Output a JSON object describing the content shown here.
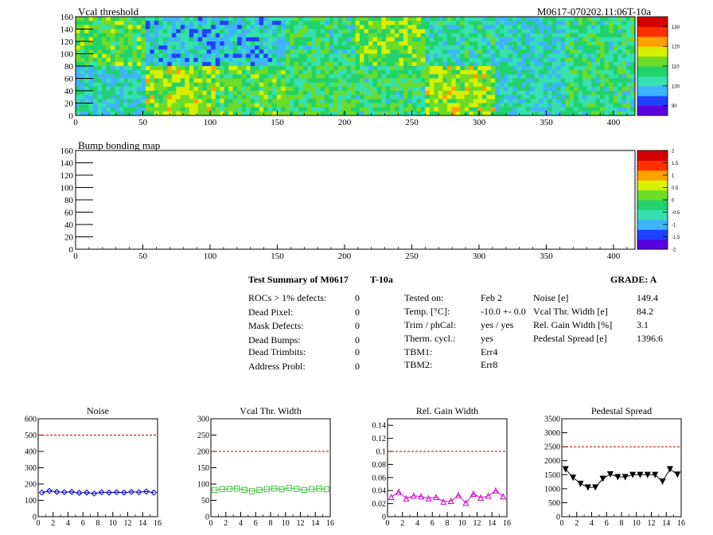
{
  "chart_data": [
    {
      "type": "heatmap",
      "title": "Vcal threshold",
      "run_label": "M0617-070202.11:06T-10a",
      "xlim": [
        0,
        416
      ],
      "ylim": [
        0,
        160
      ],
      "x_ticks": [
        0,
        50,
        100,
        150,
        200,
        250,
        300,
        350,
        400
      ],
      "y_ticks": [
        0,
        20,
        40,
        60,
        80,
        100,
        120,
        140,
        160
      ],
      "z_range": [
        85,
        135
      ],
      "z_ticks": [
        90,
        100,
        110,
        120,
        130
      ],
      "palette": [
        "#5a00e0",
        "#2040ff",
        "#3fb4ff",
        "#36e0b0",
        "#22d26a",
        "#6ddc28",
        "#d8f000",
        "#ffa000",
        "#ff3000",
        "#d40000"
      ],
      "roc_grid": {
        "cols": 8,
        "rows": 2
      },
      "roc_mean_thresholds": {
        "top": [
          110,
          100,
          100,
          106,
          112,
          104,
          102,
          106
        ],
        "bottom": [
          102,
          114,
          110,
          108,
          106,
          114,
          102,
          106
        ]
      }
    },
    {
      "type": "heatmap",
      "title": "Bump bonding map",
      "xlim": [
        0,
        416
      ],
      "ylim": [
        0,
        160
      ],
      "x_ticks": [
        0,
        50,
        100,
        150,
        200,
        250,
        300,
        350,
        400
      ],
      "y_ticks": [
        0,
        20,
        40,
        60,
        80,
        100,
        120,
        140,
        160
      ],
      "z_range": [
        -2,
        2
      ],
      "z_ticks": [
        "2",
        "1.5",
        "1",
        "0.5",
        "0",
        "-0.5",
        "-1",
        "-1.5",
        "-2"
      ],
      "palette": [
        "#5a00e0",
        "#2040ff",
        "#3fb4ff",
        "#36e0b0",
        "#22d26a",
        "#6ddc28",
        "#d8f000",
        "#ffa000",
        "#ff3000",
        "#d40000"
      ],
      "entries": 0
    },
    {
      "type": "line",
      "title": "Noise",
      "x": [
        0,
        1,
        2,
        3,
        4,
        5,
        6,
        7,
        8,
        9,
        10,
        11,
        12,
        13,
        14,
        15
      ],
      "values": [
        148,
        158,
        152,
        150,
        152,
        146,
        148,
        142,
        150,
        148,
        150,
        148,
        152,
        150,
        154,
        148
      ],
      "xlim": [
        0,
        16
      ],
      "ylim": [
        0,
        600
      ],
      "x_ticks": [
        0,
        2,
        4,
        6,
        8,
        10,
        12,
        14,
        16
      ],
      "y_ticks": [
        0,
        100,
        200,
        300,
        400,
        500,
        600
      ],
      "cut_line": 500,
      "color": "#0000c8",
      "marker": "diamond"
    },
    {
      "type": "line",
      "title": "Vcal Thr. Width",
      "x": [
        0,
        1,
        2,
        3,
        4,
        5,
        6,
        7,
        8,
        9,
        10,
        11,
        12,
        13,
        14,
        15
      ],
      "values": [
        82,
        84,
        85,
        86,
        82,
        78,
        82,
        84,
        86,
        84,
        88,
        85,
        82,
        84,
        86,
        84
      ],
      "xlim": [
        0,
        16
      ],
      "ylim": [
        0,
        300
      ],
      "x_ticks": [
        0,
        2,
        4,
        6,
        8,
        10,
        12,
        14,
        16
      ],
      "y_ticks": [
        0,
        50,
        100,
        150,
        200,
        250,
        300
      ],
      "cut_line": 200,
      "color": "#44c244",
      "marker": "square"
    },
    {
      "type": "line",
      "title": "Rel. Gain Width",
      "x": [
        0,
        1,
        2,
        3,
        4,
        5,
        6,
        7,
        8,
        9,
        10,
        11,
        12,
        13,
        14,
        15
      ],
      "values": [
        0.03,
        0.038,
        0.028,
        0.032,
        0.031,
        0.028,
        0.03,
        0.023,
        0.024,
        0.033,
        0.021,
        0.035,
        0.029,
        0.032,
        0.04,
        0.031
      ],
      "xlim": [
        0,
        16
      ],
      "ylim": [
        0,
        0.15
      ],
      "x_ticks": [
        0,
        2,
        4,
        6,
        8,
        10,
        12,
        14,
        16
      ],
      "y_ticks": [
        "0",
        "0.02",
        "0.04",
        "0.06",
        "0.08",
        "0.1",
        "0.12",
        "0.14"
      ],
      "cut_line": 0.1,
      "color": "#d000d0",
      "marker": "triangle"
    },
    {
      "type": "line",
      "title": "Pedestal Spread",
      "x": [
        0,
        1,
        2,
        3,
        4,
        5,
        6,
        7,
        8,
        9,
        10,
        11,
        12,
        13,
        14,
        15
      ],
      "values": [
        1700,
        1400,
        1180,
        1050,
        1050,
        1360,
        1520,
        1420,
        1420,
        1500,
        1500,
        1500,
        1500,
        1260,
        1700,
        1510
      ],
      "xlim": [
        0,
        16
      ],
      "ylim": [
        0,
        3500
      ],
      "x_ticks": [
        0,
        2,
        4,
        6,
        8,
        10,
        12,
        14,
        16
      ],
      "y_ticks": [
        0,
        500,
        1000,
        1500,
        2000,
        2500,
        3000,
        3500
      ],
      "cut_line": 2500,
      "color": "#000000",
      "marker": "triangle-down"
    }
  ],
  "summary": {
    "title": "Test Summary of M0617",
    "temp_label": "T-10a",
    "grade": "GRADE:  A",
    "defects": [
      {
        "label": "ROCs > 1% defects:",
        "value": "0"
      },
      {
        "label": "Dead Pixel:",
        "value": "0"
      },
      {
        "label": "Mask Defects:",
        "value": "0"
      },
      {
        "label": "Dead Bumps:",
        "value": "0"
      },
      {
        "label": "Dead Trimbits:",
        "value": "0"
      },
      {
        "label": "Address Probl:",
        "value": "0"
      }
    ],
    "conditions": [
      {
        "label": "Tested on:",
        "value": "Feb 2"
      },
      {
        "label": "Temp. [°C]:",
        "value": "-10.0 +- 0.0"
      },
      {
        "label": "Trim / phCal:",
        "value": "yes / yes"
      },
      {
        "label": "Therm. cycl.:",
        "value": "yes"
      },
      {
        "label": "TBM1:",
        "value": "Err4"
      },
      {
        "label": "TBM2:",
        "value": "Err8"
      }
    ],
    "measurements": [
      {
        "label": "Noise [e]",
        "value": "149.4"
      },
      {
        "label": "Vcal Thr. Width [e]",
        "value": "84.2"
      },
      {
        "label": "Rel. Gain Width [%]",
        "value": "3.1"
      },
      {
        "label": "Pedestal Spread [e]",
        "value": "1396.6"
      }
    ]
  }
}
